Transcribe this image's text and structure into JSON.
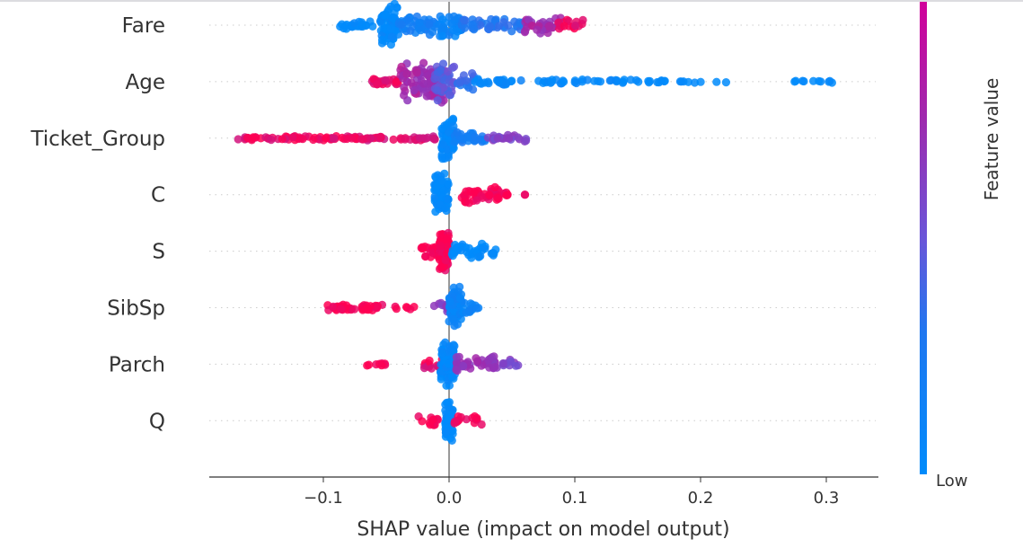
{
  "chart_data": {
    "type": "scatter",
    "subtype": "shap-beeswarm",
    "title": "",
    "xlabel": "SHAP value (impact on model output)",
    "ylabel": "",
    "xlim": [
      -0.19,
      0.34
    ],
    "xticks": [
      -0.1,
      0.0,
      0.1,
      0.2,
      0.3
    ],
    "xtick_labels": [
      "−0.1",
      "0.0",
      "0.1",
      "0.2",
      "0.3"
    ],
    "grid": "dotted horizontal per feature",
    "zero_line": 0.0,
    "colorbar": {
      "label": "Feature value",
      "low_label": "Low",
      "high_label": "",
      "low_color": "#008bfb",
      "mid_color": "#7a4fd6",
      "high_color": "#ff0052",
      "top_color": "#d1009a",
      "placement": "right"
    },
    "features": [
      {
        "name": "Fare",
        "clusters": [
          {
            "x": [
              -0.09,
              -0.06
            ],
            "fv": 0.0,
            "n": 22,
            "spread": 0.2
          },
          {
            "x": [
              -0.055,
              -0.04
            ],
            "fv": 0.02,
            "n": 70,
            "spread": 1.0
          },
          {
            "x": [
              -0.04,
              -0.01
            ],
            "fv": 0.2,
            "n": 40,
            "spread": 0.5
          },
          {
            "x": [
              -0.01,
              0.01
            ],
            "fv": 0.1,
            "n": 40,
            "spread": 0.6
          },
          {
            "x": [
              0.01,
              0.06
            ],
            "fv": 0.3,
            "n": 45,
            "spread": 0.35
          },
          {
            "x": [
              0.06,
              0.09
            ],
            "fv": 0.75,
            "n": 35,
            "spread": 0.4
          },
          {
            "x": [
              0.085,
              0.108
            ],
            "fv": 0.95,
            "n": 15,
            "spread": 0.25
          }
        ]
      },
      {
        "name": "Age",
        "clusters": [
          {
            "x": [
              -0.063,
              -0.04
            ],
            "fv": 0.95,
            "n": 25,
            "spread": 0.15
          },
          {
            "x": [
              -0.04,
              -0.003
            ],
            "fv": 0.75,
            "n": 90,
            "spread": 1.0
          },
          {
            "x": [
              -0.012,
              0.005
            ],
            "fv": 0.45,
            "n": 40,
            "spread": 0.9
          },
          {
            "x": [
              0.005,
              0.02
            ],
            "fv": 0.35,
            "n": 15,
            "spread": 0.4
          },
          {
            "x": [
              0.02,
              0.06
            ],
            "fv": 0.05,
            "n": 25,
            "spread": 0.15
          },
          {
            "x": [
              0.07,
              0.14
            ],
            "fv": 0.03,
            "n": 30,
            "spread": 0.1
          },
          {
            "x": [
              0.14,
              0.175
            ],
            "fv": 0.03,
            "n": 12,
            "spread": 0.1
          },
          {
            "x": [
              0.18,
              0.222
            ],
            "fv": 0.0,
            "n": 8,
            "spread": 0.05
          },
          {
            "x": [
              0.26,
              0.316
            ],
            "fv": 0.0,
            "n": 10,
            "spread": 0.05
          }
        ]
      },
      {
        "name": "Ticket_Group",
        "clusters": [
          {
            "x": [
              -0.168,
              -0.07
            ],
            "fv": 0.95,
            "n": 60,
            "spread": 0.1
          },
          {
            "x": [
              -0.07,
              -0.01
            ],
            "fv": 0.9,
            "n": 35,
            "spread": 0.1
          },
          {
            "x": [
              -0.006,
              0.004
            ],
            "fv": 0.02,
            "n": 70,
            "spread": 1.0
          },
          {
            "x": [
              0.004,
              0.03
            ],
            "fv": 0.2,
            "n": 30,
            "spread": 0.35
          },
          {
            "x": [
              0.03,
              0.062
            ],
            "fv": 0.6,
            "n": 25,
            "spread": 0.2
          }
        ]
      },
      {
        "name": "C",
        "clusters": [
          {
            "x": [
              -0.012,
              0.0
            ],
            "fv": 0.0,
            "n": 70,
            "spread": 1.0
          },
          {
            "x": [
              0.01,
              0.048
            ],
            "fv": 1.0,
            "n": 45,
            "spread": 0.4
          },
          {
            "x": [
              0.058,
              0.063
            ],
            "fv": 1.0,
            "n": 2,
            "spread": 0.0
          }
        ]
      },
      {
        "name": "S",
        "clusters": [
          {
            "x": [
              -0.022,
              -0.008
            ],
            "fv": 1.0,
            "n": 20,
            "spread": 0.35
          },
          {
            "x": [
              -0.008,
              0.0
            ],
            "fv": 1.0,
            "n": 70,
            "spread": 1.0
          },
          {
            "x": [
              0.002,
              0.038
            ],
            "fv": 0.0,
            "n": 40,
            "spread": 0.35
          }
        ]
      },
      {
        "name": "SibSp",
        "clusters": [
          {
            "x": [
              -0.097,
              -0.05
            ],
            "fv": 1.0,
            "n": 45,
            "spread": 0.15
          },
          {
            "x": [
              -0.043,
              -0.025
            ],
            "fv": 1.0,
            "n": 6,
            "spread": 0.1
          },
          {
            "x": [
              -0.012,
              0.003
            ],
            "fv": 0.65,
            "n": 20,
            "spread": 0.3
          },
          {
            "x": [
              0.0,
              0.01
            ],
            "fv": 0.1,
            "n": 70,
            "spread": 1.0
          },
          {
            "x": [
              0.01,
              0.026
            ],
            "fv": 0.1,
            "n": 15,
            "spread": 0.3
          }
        ]
      },
      {
        "name": "Parch",
        "clusters": [
          {
            "x": [
              -0.066,
              -0.05
            ],
            "fv": 1.0,
            "n": 8,
            "spread": 0.1
          },
          {
            "x": [
              -0.02,
              -0.005
            ],
            "fv": 0.95,
            "n": 15,
            "spread": 0.25
          },
          {
            "x": [
              -0.007,
              0.005
            ],
            "fv": 0.02,
            "n": 80,
            "spread": 1.0
          },
          {
            "x": [
              0.005,
              0.04
            ],
            "fv": 0.7,
            "n": 40,
            "spread": 0.35
          },
          {
            "x": [
              0.04,
              0.056
            ],
            "fv": 0.6,
            "n": 10,
            "spread": 0.2
          }
        ]
      },
      {
        "name": "Q",
        "clusters": [
          {
            "x": [
              -0.025,
              -0.004
            ],
            "fv": 1.0,
            "n": 15,
            "spread": 0.25
          },
          {
            "x": [
              -0.003,
              0.003
            ],
            "fv": 0.0,
            "n": 60,
            "spread": 1.0
          },
          {
            "x": [
              0.004,
              0.014
            ],
            "fv": 1.0,
            "n": 8,
            "spread": 0.2
          },
          {
            "x": [
              0.017,
              0.026
            ],
            "fv": 1.0,
            "n": 7,
            "spread": 0.2
          }
        ]
      }
    ]
  }
}
